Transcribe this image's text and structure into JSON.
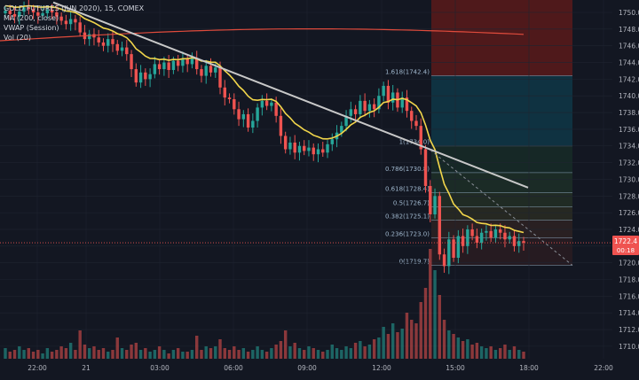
{
  "legend": {
    "symbol": "GOLD FUTURES (JUN 2020), 15, COMEX",
    "ma": "MA (200, close)",
    "vwap": "VWAP (Session)",
    "vol": "Vol (20)"
  },
  "price_badge": {
    "price": "1722.4",
    "countdown": "00:18"
  },
  "colors": {
    "up": "#26a69a",
    "down": "#ef5350",
    "bg": "#131722",
    "grid": "#1f2430",
    "ma": "#e04b3c",
    "vwap": "#f2d64b",
    "trend": "#c8c8c8",
    "fib_box_top": "#5b1a1a",
    "fib_box_mid": "#0d2d4e"
  },
  "chart_data": {
    "type": "candlestick",
    "y_axis": {
      "min": 1708,
      "max": 1752,
      "ticks": [
        1750,
        1748,
        1746,
        1744,
        1742,
        1740,
        1738,
        1736,
        1734,
        1732,
        1730,
        1728,
        1726,
        1724,
        1722,
        1720,
        1718,
        1716,
        1714,
        1712,
        1710
      ]
    },
    "x_axis": {
      "ticks": [
        "22:00",
        "21",
        "03:00",
        "06:00",
        "09:00",
        "12:00",
        "15:00",
        "18:00",
        "22:00"
      ]
    },
    "fib_levels": [
      {
        "label": "1.618(1742.4)",
        "value": 1742.4
      },
      {
        "label": "1(1734.0)",
        "value": 1734.0
      },
      {
        "label": "0.786(1730.8)",
        "value": 1730.8
      },
      {
        "label": "0.618(1728.4)",
        "value": 1728.4
      },
      {
        "label": "0.5(1726.7)",
        "value": 1726.7
      },
      {
        "label": "0.382(1725.1)",
        "value": 1725.1
      },
      {
        "label": "0.236(1723.0)",
        "value": 1723.0
      },
      {
        "label": "0(1719.7)",
        "value": 1719.7
      }
    ],
    "last_price": 1722.4,
    "candles_close": [
      1750.2,
      1749.8,
      1749.5,
      1750.1,
      1750.6,
      1750.4,
      1750.0,
      1749.6,
      1749.9,
      1750.3,
      1750.0,
      1749.5,
      1749.0,
      1748.6,
      1749.2,
      1748.8,
      1747.6,
      1746.8,
      1747.4,
      1747.0,
      1746.4,
      1746.0,
      1746.8,
      1746.2,
      1745.4,
      1745.8,
      1745.0,
      1743.2,
      1741.6,
      1742.8,
      1742.0,
      1742.6,
      1743.8,
      1743.2,
      1744.0,
      1743.1,
      1744.2,
      1743.6,
      1744.4,
      1743.8,
      1744.5,
      1743.2,
      1742.4,
      1743.6,
      1742.8,
      1743.4,
      1741.0,
      1739.8,
      1739.6,
      1738.4,
      1737.2,
      1737.8,
      1736.2,
      1737.0,
      1738.6,
      1739.4,
      1738.8,
      1739.2,
      1737.6,
      1735.2,
      1733.6,
      1734.4,
      1733.2,
      1734.0,
      1733.4,
      1733.8,
      1733.0,
      1733.6,
      1733.2,
      1734.2,
      1734.8,
      1735.6,
      1736.4,
      1737.6,
      1738.4,
      1737.8,
      1739.4,
      1738.2,
      1739.0,
      1738.4,
      1740.0,
      1741.2,
      1739.2,
      1740.4,
      1738.6,
      1739.8,
      1738.2,
      1737.0,
      1736.4,
      1733.6,
      1729.2,
      1725.8,
      1728.0,
      1721.0,
      1719.6,
      1722.8,
      1720.6,
      1723.2,
      1722.0,
      1724.0,
      1723.2,
      1722.4,
      1723.6,
      1723.8,
      1723.0,
      1724.0,
      1723.6,
      1722.8,
      1723.2,
      1722.0,
      1722.6,
      1722.4
    ],
    "volume": [
      0.6,
      0.4,
      0.5,
      0.7,
      0.5,
      0.6,
      0.4,
      0.5,
      0.3,
      0.6,
      0.4,
      0.5,
      0.7,
      0.6,
      0.9,
      0.5,
      1.6,
      0.8,
      0.6,
      0.7,
      0.5,
      0.6,
      0.4,
      0.5,
      1.2,
      0.6,
      0.5,
      0.8,
      0.9,
      0.5,
      0.6,
      0.4,
      0.5,
      0.7,
      0.5,
      0.3,
      0.5,
      0.6,
      0.4,
      0.4,
      0.5,
      1.3,
      0.5,
      0.7,
      0.6,
      0.7,
      1.1,
      0.6,
      0.5,
      0.7,
      0.5,
      0.6,
      0.4,
      0.5,
      0.7,
      0.5,
      0.4,
      0.6,
      0.8,
      1.0,
      1.6,
      0.7,
      0.9,
      0.6,
      0.5,
      0.7,
      0.6,
      0.5,
      0.4,
      0.5,
      0.8,
      0.6,
      0.5,
      0.7,
      0.6,
      0.9,
      1.0,
      0.7,
      0.8,
      1.1,
      1.2,
      1.8,
      1.4,
      2.0,
      1.5,
      1.7,
      2.6,
      2.2,
      2.0,
      3.2,
      4.0,
      6.2,
      5.0,
      3.6,
      2.2,
      1.6,
      1.4,
      1.2,
      1.0,
      1.1,
      0.8,
      0.9,
      0.7,
      0.6,
      0.7,
      0.5,
      0.6,
      0.8,
      0.5,
      0.7,
      0.5,
      0.4
    ]
  }
}
